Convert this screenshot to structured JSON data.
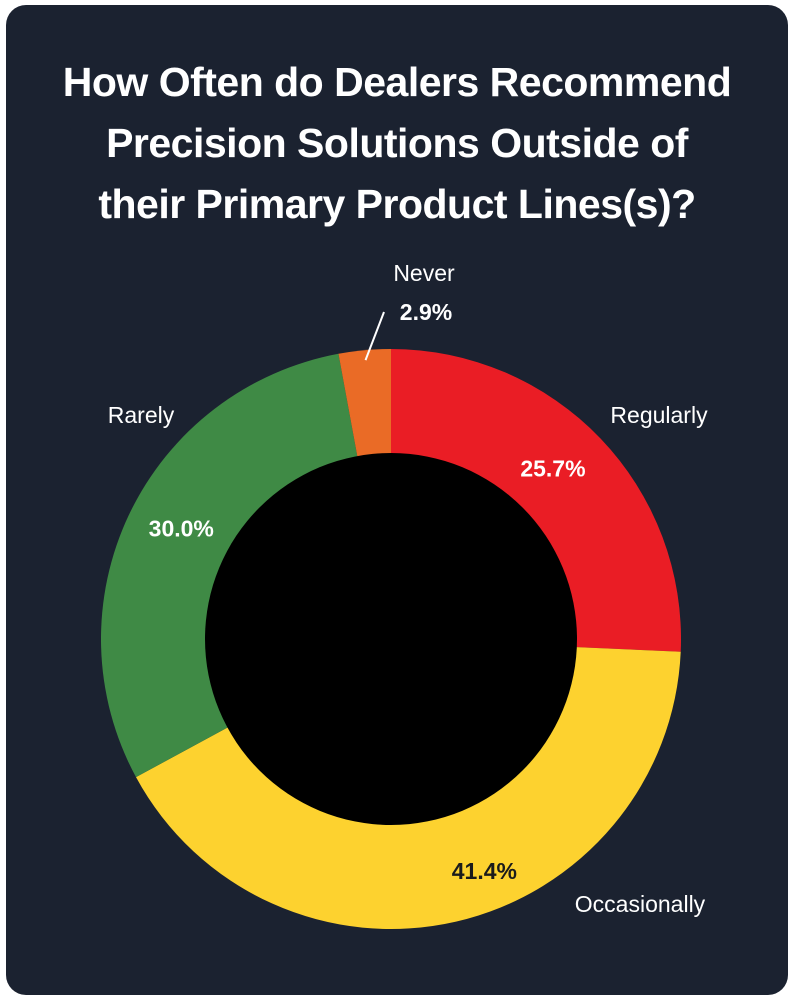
{
  "chart_data": {
    "type": "pie",
    "variant": "donut",
    "title_lines": [
      "How Often do Dealers Recommend",
      "Precision Solutions Outside of",
      "their Primary Product Lines(s)?"
    ],
    "categories": [
      "Regularly",
      "Occasionally",
      "Rarely",
      "Never"
    ],
    "values": [
      25.7,
      41.4,
      30.0,
      2.9
    ],
    "value_labels": [
      "25.7%",
      "41.4%",
      "30.0%",
      "2.9%"
    ],
    "colors": [
      "#ea1d25",
      "#fdd22f",
      "#3f8a45",
      "#ea6b26"
    ],
    "label_colors": [
      "#ffffff",
      "#1b1b1b",
      "#ffffff",
      "#ffffff"
    ],
    "center_color": "#000000",
    "background": "#1b2230",
    "start_angle": "12 o'clock",
    "direction": "clockwise",
    "legend": "none"
  }
}
